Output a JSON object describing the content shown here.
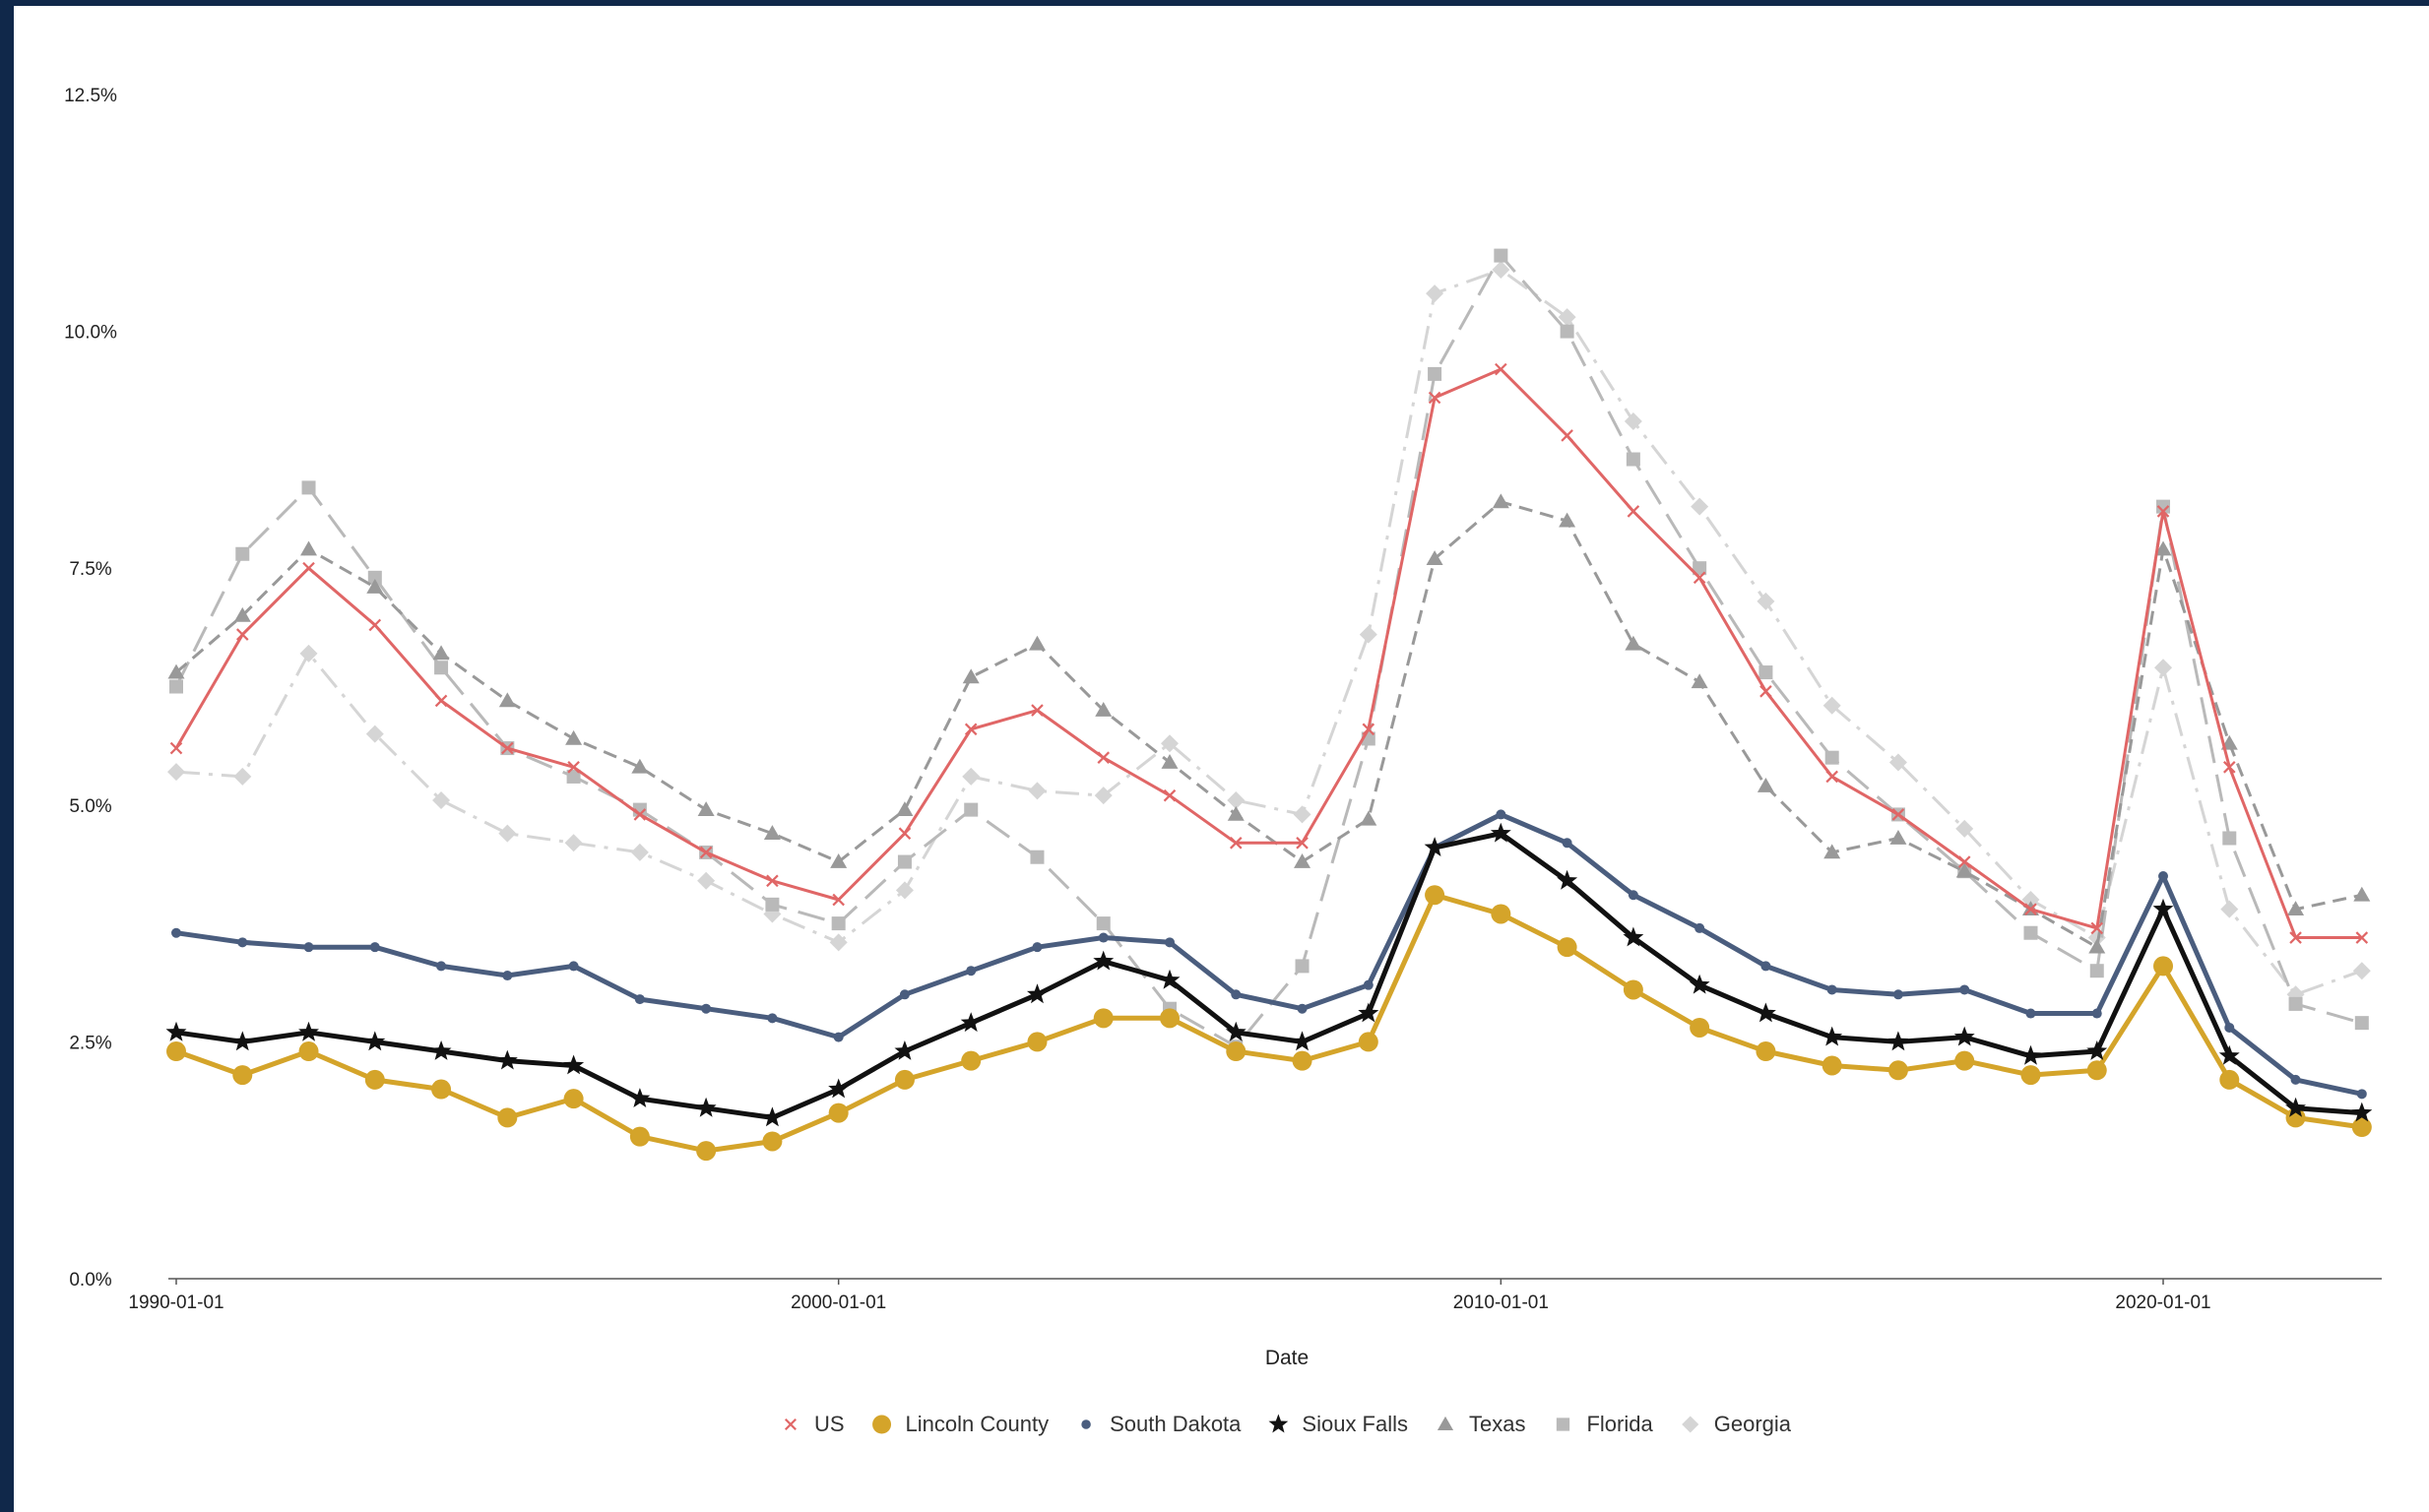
{
  "chart_data": {
    "type": "line",
    "title": "",
    "xlabel": "Date",
    "ylabel": "",
    "x": [
      1990,
      1991,
      1992,
      1993,
      1994,
      1995,
      1996,
      1997,
      1998,
      1999,
      2000,
      2001,
      2002,
      2003,
      2004,
      2005,
      2006,
      2007,
      2008,
      2009,
      2010,
      2011,
      2012,
      2013,
      2014,
      2015,
      2016,
      2017,
      2018,
      2019,
      2020,
      2021,
      2022,
      2023
    ],
    "xlim": [
      1990,
      2023.3
    ],
    "x_ticks": [
      1990,
      2000,
      2010,
      2020
    ],
    "x_tick_labels": [
      "1990-01-01",
      "2000-01-01",
      "2010-01-01",
      "2020-01-01"
    ],
    "ylim": [
      0,
      12.5
    ],
    "y_ticks": [
      0,
      2.5,
      5.0,
      7.5,
      10.0,
      12.5
    ],
    "y_tick_labels": [
      "0.0%",
      "2.5%",
      "5.0%",
      "7.5%",
      "10.0%",
      "12.5%"
    ],
    "grid": false,
    "legend_position": "bottom",
    "series": [
      {
        "name": "US",
        "color": "#e06666",
        "marker": "x",
        "dash": "solid",
        "values": [
          5.6,
          6.8,
          7.5,
          6.9,
          6.1,
          5.6,
          5.4,
          4.9,
          4.5,
          4.2,
          4.0,
          4.7,
          5.8,
          6.0,
          5.5,
          5.1,
          4.6,
          4.6,
          5.8,
          9.3,
          9.6,
          8.9,
          8.1,
          7.4,
          6.2,
          5.3,
          4.9,
          4.4,
          3.9,
          3.7,
          8.1,
          5.4,
          3.6,
          3.6
        ]
      },
      {
        "name": "Lincoln County",
        "color": "#d4a42a",
        "marker": "circle",
        "dash": "solid",
        "values": [
          2.4,
          2.15,
          2.4,
          2.1,
          2.0,
          1.7,
          1.9,
          1.5,
          1.35,
          1.45,
          1.75,
          2.1,
          2.3,
          2.5,
          2.75,
          2.75,
          2.4,
          2.3,
          2.5,
          4.05,
          3.85,
          3.5,
          3.05,
          2.65,
          2.4,
          2.25,
          2.2,
          2.3,
          2.15,
          2.2,
          3.3,
          2.1,
          1.7,
          1.6
        ]
      },
      {
        "name": "South Dakota",
        "color": "#4a5d7e",
        "marker": "circle-small",
        "dash": "solid",
        "values": [
          3.65,
          3.55,
          3.5,
          3.5,
          3.3,
          3.2,
          3.3,
          2.95,
          2.85,
          2.75,
          2.55,
          3.0,
          3.25,
          3.5,
          3.6,
          3.55,
          3.0,
          2.85,
          3.1,
          4.55,
          4.9,
          4.6,
          4.05,
          3.7,
          3.3,
          3.05,
          3.0,
          3.05,
          2.8,
          2.8,
          4.25,
          2.65,
          2.1,
          1.95
        ]
      },
      {
        "name": "Sioux Falls",
        "color": "#111111",
        "marker": "star",
        "dash": "solid",
        "values": [
          2.6,
          2.5,
          2.6,
          2.5,
          2.4,
          2.3,
          2.25,
          1.9,
          1.8,
          1.7,
          2.0,
          2.4,
          2.7,
          3.0,
          3.35,
          3.15,
          2.6,
          2.5,
          2.8,
          4.55,
          4.7,
          4.2,
          3.6,
          3.1,
          2.8,
          2.55,
          2.5,
          2.55,
          2.35,
          2.4,
          3.9,
          2.35,
          1.8,
          1.75
        ]
      },
      {
        "name": "Texas",
        "color": "#999999",
        "marker": "triangle",
        "dash": "dash",
        "values": [
          6.4,
          7.0,
          7.7,
          7.3,
          6.6,
          6.1,
          5.7,
          5.4,
          4.95,
          4.7,
          4.4,
          4.95,
          6.35,
          6.7,
          6.0,
          5.45,
          4.9,
          4.4,
          4.85,
          7.6,
          8.2,
          8.0,
          6.7,
          6.3,
          5.2,
          4.5,
          4.65,
          4.3,
          3.9,
          3.5,
          7.7,
          5.65,
          3.9,
          4.05
        ]
      },
      {
        "name": "Florida",
        "color": "#b9b9b9",
        "marker": "square",
        "dash": "longdash",
        "values": [
          6.25,
          7.65,
          8.35,
          7.4,
          6.45,
          5.6,
          5.3,
          4.95,
          4.5,
          3.95,
          3.75,
          4.4,
          4.95,
          4.45,
          3.75,
          2.85,
          2.45,
          3.3,
          5.7,
          9.55,
          10.8,
          10.0,
          8.65,
          7.5,
          6.4,
          5.5,
          4.9,
          4.3,
          3.65,
          3.25,
          8.15,
          4.65,
          2.9,
          2.7
        ]
      },
      {
        "name": "Georgia",
        "color": "#d5d5d5",
        "marker": "diamond",
        "dash": "dashdot",
        "values": [
          5.35,
          5.3,
          6.6,
          5.75,
          5.05,
          4.7,
          4.6,
          4.5,
          4.2,
          3.85,
          3.55,
          4.1,
          5.3,
          5.15,
          5.1,
          5.65,
          5.05,
          4.9,
          6.8,
          10.4,
          10.65,
          10.15,
          9.05,
          8.15,
          7.15,
          6.05,
          5.45,
          4.75,
          4.0,
          3.6,
          6.45,
          3.9,
          3.0,
          3.25
        ]
      }
    ]
  }
}
